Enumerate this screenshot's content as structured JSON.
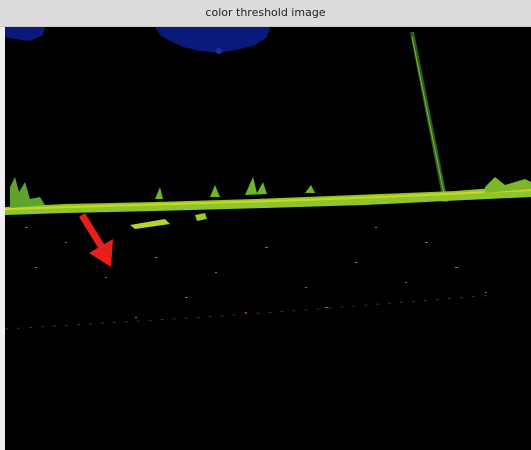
{
  "window": {
    "title": "color threshold image"
  }
}
